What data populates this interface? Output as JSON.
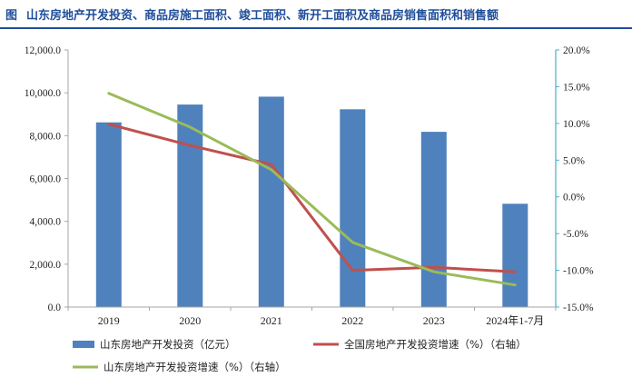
{
  "header": {
    "figure_label": "图",
    "title": "山东房地产开发投资、商品房施工面积、竣工面积、新开工面积及商品房销售面积和销售额"
  },
  "colors": {
    "bars": "#4f81bd",
    "national_line": "#c0504d",
    "shandong_line": "#9bbb59",
    "title": "#1f4e9c",
    "right_axis": "#4bacc6"
  },
  "chart_data": {
    "type": "bar",
    "categories": [
      "2019",
      "2020",
      "2021",
      "2022",
      "2023",
      "2024年1-7月"
    ],
    "series": [
      {
        "name": "山东房地产开发投资（亿元）",
        "type": "bar",
        "axis": "left",
        "values": [
          8620,
          9450,
          9820,
          9230,
          8180,
          4820
        ]
      },
      {
        "name": "全国房地产开发投资增速（%）（右轴）",
        "type": "line",
        "axis": "right",
        "values": [
          9.9,
          7.0,
          4.4,
          -10.0,
          -9.6,
          -10.2
        ]
      },
      {
        "name": "山东房地产开发投资增速（%）（右轴）",
        "type": "line",
        "axis": "right",
        "values": [
          14.1,
          9.5,
          3.7,
          -6.2,
          -10.2,
          -12.0
        ]
      }
    ],
    "left_axis": {
      "ylim": [
        0,
        12000
      ],
      "ticks": [
        "0.0",
        "2,000.0",
        "4,000.0",
        "6,000.0",
        "8,000.0",
        "10,000.0",
        "12,000.0"
      ]
    },
    "right_axis": {
      "ylim": [
        -15,
        20
      ],
      "ticks": [
        "-15.0%",
        "-10.0%",
        "-5.0%",
        "0.0%",
        "5.0%",
        "10.0%",
        "15.0%",
        "20.0%"
      ]
    },
    "grid": false,
    "legend_position": "bottom"
  }
}
